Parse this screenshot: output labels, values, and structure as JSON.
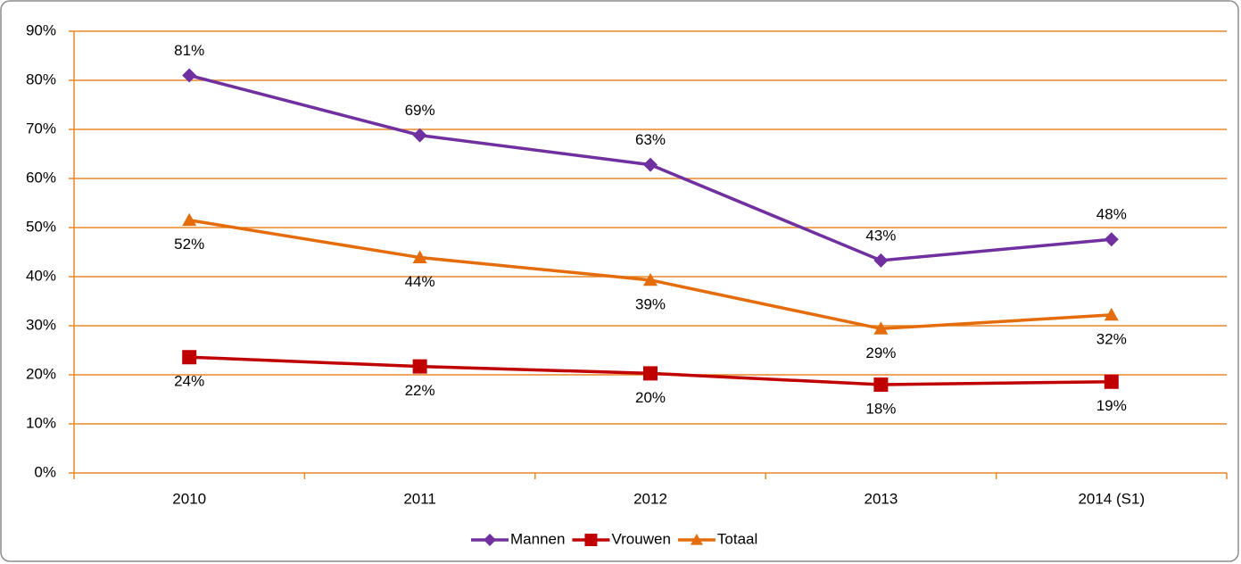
{
  "chart_data": {
    "type": "line",
    "categories": [
      "2010",
      "2011",
      "2012",
      "2013",
      "2014 (S1)"
    ],
    "series": [
      {
        "name": "Mannen",
        "color": "#7030a0",
        "marker": "diamond",
        "label_position": "above",
        "values": [
          81,
          68.8,
          62.8,
          43.3,
          47.6
        ],
        "value_labels": [
          "81%",
          "69%",
          "63%",
          "43%",
          "48%"
        ]
      },
      {
        "name": "Vrouwen",
        "color": "#c00000",
        "marker": "square",
        "label_position": "below",
        "values": [
          23.6,
          21.7,
          20.3,
          18.0,
          18.6
        ],
        "value_labels": [
          "24%",
          "22%",
          "20%",
          "18%",
          "19%"
        ]
      },
      {
        "name": "Totaal",
        "color": "#e46c0a",
        "marker": "triangle",
        "label_position": "below",
        "values": [
          51.5,
          43.9,
          39.3,
          29.4,
          32.2
        ],
        "value_labels": [
          "52%",
          "44%",
          "39%",
          "29%",
          "32%"
        ]
      }
    ],
    "ylim": [
      0,
      90
    ],
    "yticks": [
      {
        "value": 0,
        "label": "0%"
      },
      {
        "value": 10,
        "label": "10%"
      },
      {
        "value": 20,
        "label": "20%"
      },
      {
        "value": 30,
        "label": "30%"
      },
      {
        "value": 40,
        "label": "40%"
      },
      {
        "value": 50,
        "label": "50%"
      },
      {
        "value": 60,
        "label": "60%"
      },
      {
        "value": 70,
        "label": "70%"
      },
      {
        "value": 80,
        "label": "80%"
      },
      {
        "value": 90,
        "label": "90%"
      }
    ],
    "grid": true,
    "grid_color": "#e8892a",
    "legend": "bottom"
  }
}
